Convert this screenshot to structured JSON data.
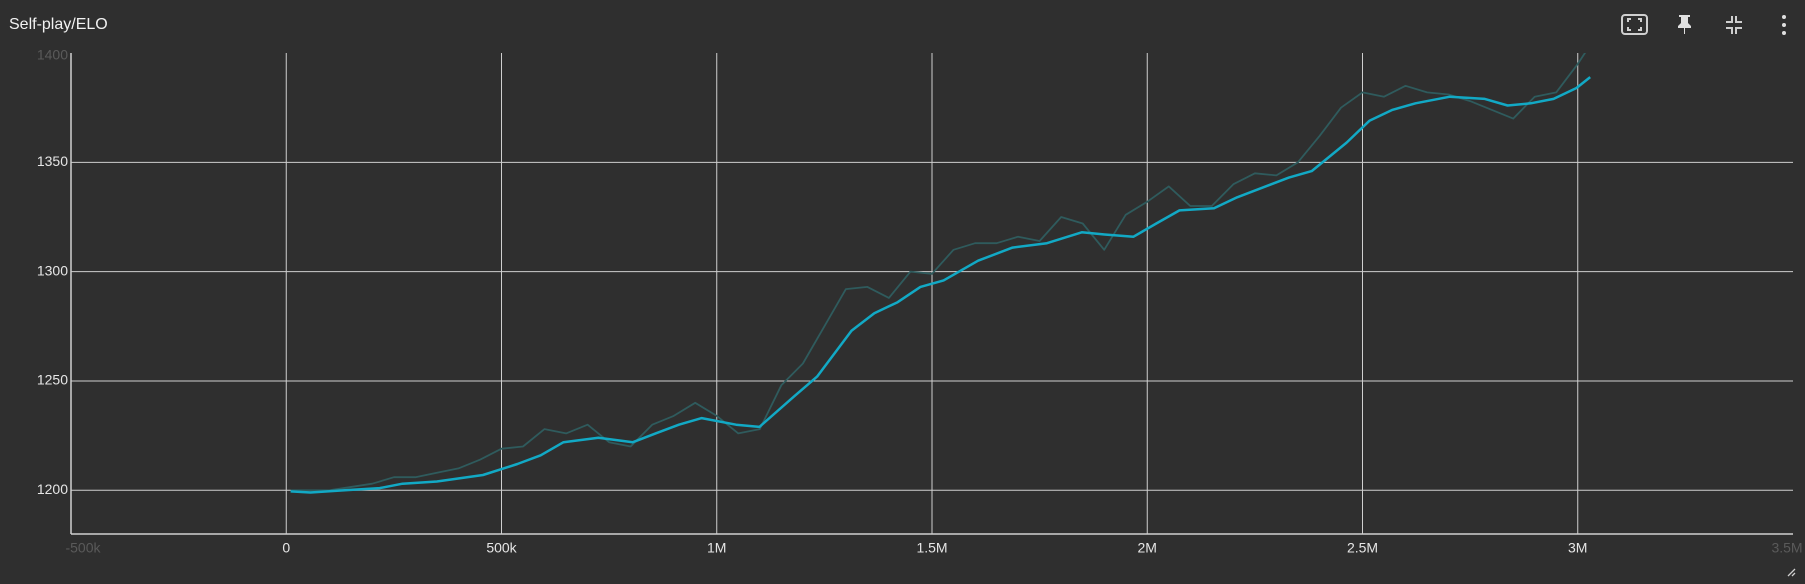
{
  "chart_data": {
    "type": "line",
    "title": "Self-play/ELO",
    "xlim": [
      -500000,
      3500000
    ],
    "xticks": [
      {
        "value": -500000,
        "label": "-500k"
      },
      0,
      {
        "value": 500000,
        "label": "500k"
      },
      {
        "value": 1000000,
        "label": "1M"
      },
      {
        "value": 1500000,
        "label": "1.5M"
      },
      {
        "value": 2000000,
        "label": "2M"
      },
      {
        "value": 2500000,
        "label": "2.5M"
      },
      {
        "value": 3000000,
        "label": "3M"
      },
      {
        "value": 3500000,
        "label": "3.5M"
      }
    ],
    "ylim": [
      1180,
      1400
    ],
    "yticks": [
      1200,
      1250,
      1300,
      1350,
      1400
    ],
    "grid": true,
    "series": [
      {
        "color": "#2f5b5d",
        "x": [
          10000,
          100000,
          200000,
          250000,
          300000,
          350000,
          400000,
          450000,
          500000,
          550000,
          600000,
          650000,
          700000,
          750000,
          800000,
          850000,
          900000,
          950000,
          1000000,
          1050000,
          1100000,
          1150000,
          1200000,
          1250000,
          1300000,
          1350000,
          1400000,
          1450000,
          1500000,
          1550000,
          1600000,
          1650000,
          1700000,
          1750000,
          1800000,
          1850000,
          1900000,
          1950000,
          2000000,
          2050000,
          2100000,
          2150000,
          2200000,
          2250000,
          2300000,
          2350000,
          2400000,
          2450000,
          2500000,
          2550000,
          2600000,
          2650000,
          2700000,
          2750000,
          2800000,
          2850000,
          2900000,
          2950000,
          3000000,
          3020000
        ],
        "values": [
          1200,
          1200,
          1203,
          1206,
          1206,
          1208,
          1210,
          1214,
          1219,
          1220,
          1228,
          1226,
          1230,
          1222,
          1220,
          1230,
          1234,
          1240,
          1234,
          1226,
          1228,
          1248,
          1258,
          1275,
          1292,
          1293,
          1288,
          1300,
          1299,
          1310,
          1313,
          1313,
          1316,
          1314,
          1325,
          1322,
          1310,
          1326,
          1332,
          1339,
          1330,
          1330,
          1340,
          1345,
          1344,
          1350,
          1362,
          1375,
          1382,
          1380,
          1385,
          1382,
          1381,
          1378,
          1374,
          1370,
          1380,
          1382,
          1395,
          1401
        ]
      },
      {
        "color": "#12a9c5",
        "x": [
          10000,
          56000,
          136000,
          217000,
          270000,
          350000,
          457000,
          537000,
          591000,
          644000,
          725000,
          805000,
          858000,
          912000,
          965000,
          1045000,
          1099000,
          1180000,
          1233000,
          1313000,
          1366000,
          1420000,
          1473000,
          1527000,
          1607000,
          1687000,
          1767000,
          1848000,
          1901000,
          1968000,
          2021000,
          2075000,
          2155000,
          2209000,
          2275000,
          2329000,
          2382000,
          2463000,
          2516000,
          2570000,
          2623000,
          2703000,
          2784000,
          2837000,
          2891000,
          2944000,
          2997000,
          3029000
        ],
        "values": [
          1199.5,
          1199,
          1200,
          1201,
          1203,
          1204,
          1207,
          1212,
          1216,
          1222,
          1224,
          1222,
          1226,
          1230,
          1233,
          1230,
          1229,
          1243,
          1252,
          1273,
          1281,
          1286,
          1293,
          1296,
          1305,
          1311,
          1313,
          1318,
          1317,
          1316,
          1322,
          1328,
          1329,
          1334,
          1339,
          1343,
          1346,
          1359,
          1369,
          1374,
          1377,
          1380,
          1379,
          1376,
          1377,
          1379,
          1384,
          1389
        ]
      }
    ]
  }
}
